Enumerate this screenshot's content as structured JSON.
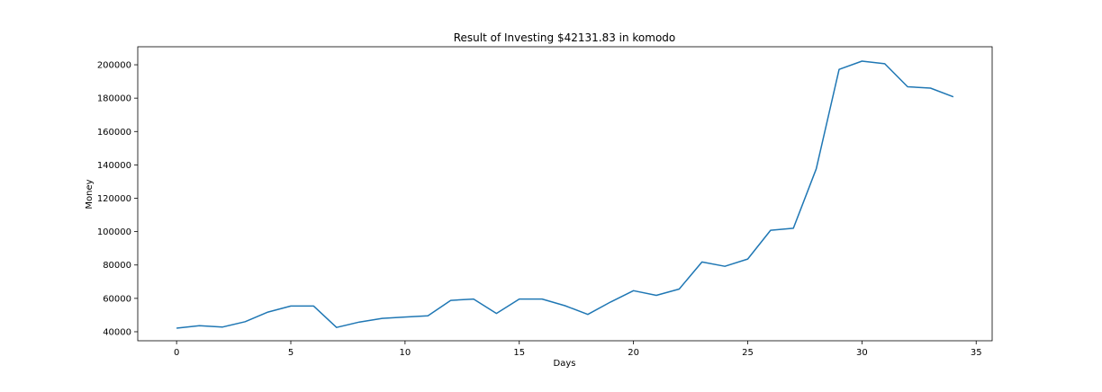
{
  "chart_data": {
    "type": "line",
    "title": "Result of Investing $42131.83 in komodo",
    "xlabel": "Days",
    "ylabel": "Money",
    "xlim": [
      -1.7,
      35.7
    ],
    "ylim": [
      34600,
      210800
    ],
    "xticks": [
      0,
      5,
      10,
      15,
      20,
      25,
      30,
      35
    ],
    "yticks": [
      40000,
      60000,
      80000,
      100000,
      120000,
      140000,
      160000,
      180000,
      200000
    ],
    "grid": false,
    "legend": "none",
    "line_color": "#1f77b4",
    "series": [
      {
        "x": [
          0,
          1,
          2,
          3,
          4,
          5,
          6,
          7,
          8,
          9,
          10,
          11,
          12,
          13,
          14,
          15,
          16,
          17,
          18,
          19,
          20,
          21,
          22,
          23,
          24,
          25,
          26,
          27,
          28,
          29,
          30,
          31,
          32,
          33,
          34
        ],
        "values": [
          42132,
          43600,
          42800,
          46000,
          51800,
          55400,
          55400,
          42600,
          45800,
          48000,
          48800,
          49600,
          58800,
          59600,
          51000,
          59600,
          59600,
          55600,
          50400,
          57800,
          64600,
          61800,
          65600,
          81800,
          79200,
          83600,
          100800,
          102000,
          137600,
          197200,
          202200,
          200600,
          186800,
          186000,
          180800
        ]
      }
    ]
  }
}
